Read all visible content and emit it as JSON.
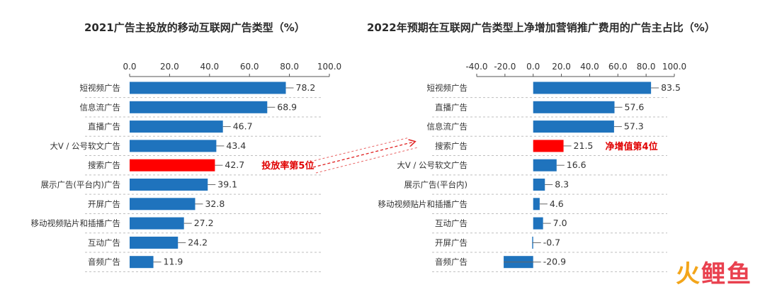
{
  "chart_data": [
    {
      "type": "bar",
      "orientation": "horizontal",
      "title": "2021广告主投放的移动互联网广告类型（%）",
      "categories": [
        "短视频广告",
        "信息流广告",
        "直播广告",
        "大V / 公号软文广告",
        "搜索广告",
        "展示广告(平台内)广告",
        "开屏广告",
        "移动视频贴片和插播广告",
        "互动广告",
        "音频广告"
      ],
      "values": [
        78.2,
        68.9,
        46.7,
        43.4,
        42.7,
        39.1,
        32.8,
        27.2,
        24.2,
        11.9
      ],
      "value_labels": [
        "78.2",
        "68.9",
        "46.7",
        "43.4",
        "42.7",
        "39.1",
        "32.8",
        "27.2",
        "24.2",
        "11.9"
      ],
      "ticks": [
        "0.0",
        "20.0",
        "40.0",
        "60.0",
        "80.0",
        "100.0"
      ],
      "xlim": [
        0,
        100
      ],
      "highlight_index": 4,
      "annotation": "投放率第5位",
      "bar_color": "#1f73bd",
      "highlight_color": "#ff0000"
    },
    {
      "type": "bar",
      "orientation": "horizontal",
      "title": "2022年预期在互联网广告类型上净增加营销推广费用的广告主占比（%）",
      "categories": [
        "短视频广告",
        "直播广告",
        "信息流广告",
        "搜索广告",
        "大V / 公号软文广告",
        "展示广告(平台内)",
        "移动视频贴片和插播广告",
        "互动广告",
        "开屏广告",
        "音频广告"
      ],
      "values": [
        83.5,
        57.6,
        57.3,
        21.5,
        16.6,
        8.3,
        4.6,
        7.0,
        -0.7,
        -20.9
      ],
      "value_labels": [
        "83.5",
        "57.6",
        "57.3",
        "21.5",
        "16.6",
        "8.3",
        "4.6",
        "7.0",
        "-0.7",
        "-20.9"
      ],
      "ticks": [
        "-40.0",
        "-20.0",
        "0.0",
        "20.0",
        "40.0",
        "60.0",
        "80.0",
        "100.0"
      ],
      "xlim": [
        -40,
        100
      ],
      "highlight_index": 3,
      "annotation": "净增值第4位",
      "bar_color": "#1f73bd",
      "highlight_color": "#ff0000"
    }
  ],
  "watermark": {
    "text": "火鲤鱼",
    "colors": [
      "#f3a51a",
      "#e9414f",
      "#e9414f"
    ]
  }
}
